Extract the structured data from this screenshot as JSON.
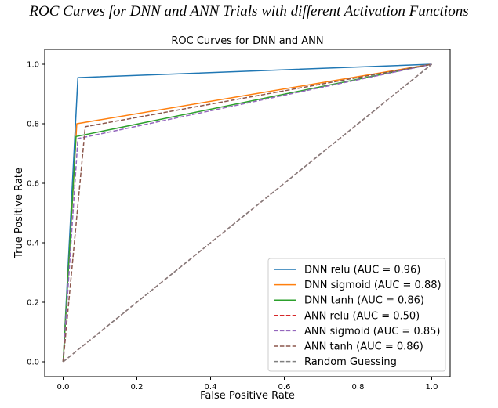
{
  "caption": "ROC Curves for DNN and ANN Trials with different Activation Functions",
  "chart_data": {
    "type": "line",
    "title": "ROC Curves for DNN and ANN",
    "xlabel": "False Positive Rate",
    "ylabel": "True Positive Rate",
    "xlim": [
      -0.05,
      1.05
    ],
    "ylim": [
      -0.05,
      1.05
    ],
    "xticks": [
      "0.0",
      "0.2",
      "0.4",
      "0.6",
      "0.8",
      "1.0"
    ],
    "xtick_values": [
      0.0,
      0.2,
      0.4,
      0.6,
      0.8,
      1.0
    ],
    "yticks": [
      "0.0",
      "0.2",
      "0.4",
      "0.6",
      "0.8",
      "1.0"
    ],
    "ytick_values": [
      0.0,
      0.2,
      0.4,
      0.6,
      0.8,
      1.0
    ],
    "grid": false,
    "legend_position": "bottom-right",
    "series": [
      {
        "name": "DNN relu (AUC = 0.96)",
        "color": "#1f77b4",
        "dash": "solid",
        "x": [
          0.0,
          0.04,
          1.0
        ],
        "y": [
          0.0,
          0.955,
          1.0
        ]
      },
      {
        "name": "DNN sigmoid (AUC = 0.88)",
        "color": "#ff7f0e",
        "dash": "solid",
        "x": [
          0.0,
          0.037,
          1.0
        ],
        "y": [
          0.0,
          0.8,
          1.0
        ]
      },
      {
        "name": "DNN tanh (AUC = 0.86)",
        "color": "#2ca02c",
        "dash": "solid",
        "x": [
          0.0,
          0.035,
          1.0
        ],
        "y": [
          0.0,
          0.757,
          1.0
        ]
      },
      {
        "name": "ANN relu (AUC = 0.50)",
        "color": "#d62728",
        "dash": "dashed",
        "x": [
          0.0,
          1.0
        ],
        "y": [
          0.0,
          1.0
        ]
      },
      {
        "name": "ANN sigmoid (AUC = 0.85)",
        "color": "#9467bd",
        "dash": "dashed",
        "x": [
          0.0,
          0.04,
          1.0
        ],
        "y": [
          0.0,
          0.75,
          1.0
        ]
      },
      {
        "name": "ANN tanh (AUC = 0.86)",
        "color": "#8c564b",
        "dash": "dashed",
        "x": [
          0.0,
          0.06,
          1.0
        ],
        "y": [
          0.0,
          0.79,
          1.0
        ]
      },
      {
        "name": "Random Guessing",
        "color": "#7f7f7f",
        "dash": "dashed",
        "x": [
          0.0,
          1.0
        ],
        "y": [
          0.0,
          1.0
        ]
      }
    ]
  }
}
